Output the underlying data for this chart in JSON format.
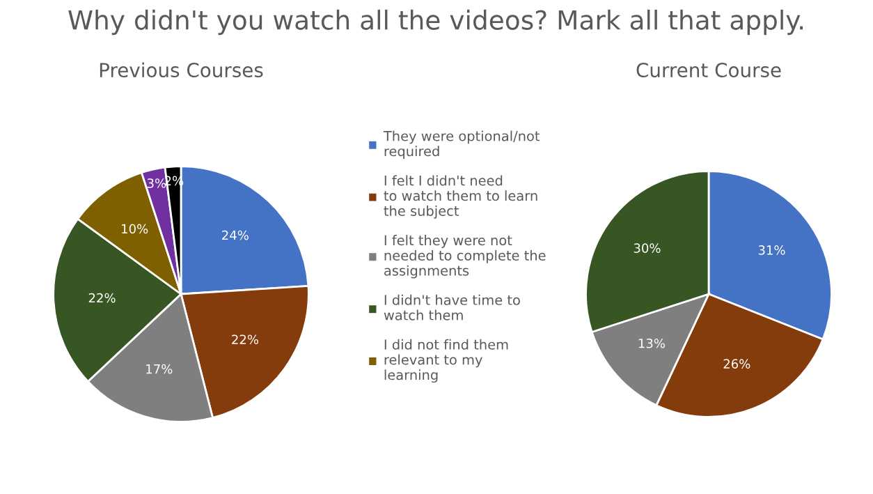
{
  "chart_data": [
    {
      "type": "pie",
      "title": "Why didn't you watch all the videos? Mark all that apply.",
      "subtitle": "Previous Courses",
      "categories": [
        "They were optional/not required",
        "I felt I didn't need to watch them to learn the subject",
        "I felt they were not needed to complete the assignments",
        "I didn't have time to watch them",
        "I did not find them relevant to my learning",
        null,
        null
      ],
      "values": [
        24,
        22,
        17,
        22,
        10,
        3,
        2
      ],
      "value_labels": [
        "24%",
        "22%",
        "17%",
        "22%",
        "10%",
        "3%",
        "2%"
      ],
      "colors": [
        "#4472c4",
        "#843c0c",
        "#7f7f7f",
        "#375623",
        "#7f6000",
        "#7030a0",
        "#000000"
      ],
      "legend": "right"
    },
    {
      "type": "pie",
      "title": "Current Course",
      "categories": [
        null,
        null,
        null,
        null
      ],
      "values": [
        31,
        26,
        13,
        30
      ],
      "value_labels": [
        "31%",
        "26%",
        "13%",
        "30%"
      ],
      "colors": [
        "#4472c4",
        "#843c0c",
        "#7f7f7f",
        "#375623"
      ],
      "legend": false
    }
  ]
}
